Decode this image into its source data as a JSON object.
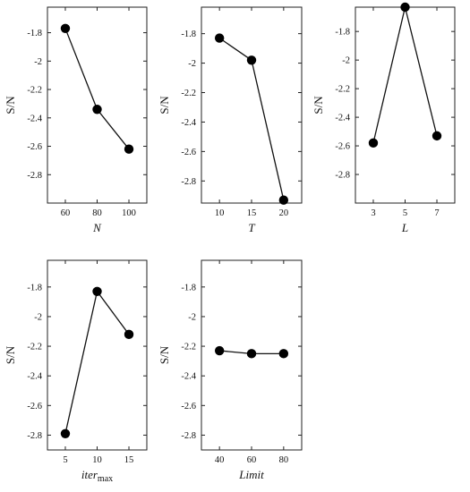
{
  "chart_data": [
    {
      "type": "line",
      "x": [
        "60",
        "80",
        "100"
      ],
      "values": [
        -1.77,
        -2.34,
        -2.62
      ],
      "ylim": [
        -3.0,
        -1.62
      ],
      "yticks": [
        -2.8,
        -2.6,
        -2.4,
        -2.2,
        -2.0,
        -1.8
      ],
      "ytick_labels": [
        "-2.8",
        "-2.6",
        "-2.4",
        "-2.2",
        "-2",
        "-1.8"
      ],
      "ylabel": "S/N",
      "xlabel": "N",
      "xlabel_sub": "",
      "grid": false
    },
    {
      "type": "line",
      "x": [
        "10",
        "15",
        "20"
      ],
      "values": [
        -1.83,
        -1.98,
        -2.93
      ],
      "ylim": [
        -2.95,
        -1.62
      ],
      "yticks": [
        -2.8,
        -2.6,
        -2.4,
        -2.2,
        -2.0,
        -1.8
      ],
      "ytick_labels": [
        "-2.8",
        "-2.6",
        "-2.4",
        "-2.2",
        "-2",
        "-1.8"
      ],
      "ylabel": "S/N",
      "xlabel": "T",
      "xlabel_sub": "",
      "grid": false
    },
    {
      "type": "line",
      "x": [
        "3",
        "5",
        "7"
      ],
      "values": [
        -2.58,
        -1.63,
        -2.53
      ],
      "ylim": [
        -3.0,
        -1.63
      ],
      "yticks": [
        -2.8,
        -2.6,
        -2.4,
        -2.2,
        -2.0,
        -1.8
      ],
      "ytick_labels": [
        "-2.8",
        "-2.6",
        "-2.4",
        "-2.2",
        "-2",
        "-1.8"
      ],
      "ylabel": "S/N",
      "xlabel": "L",
      "xlabel_sub": "",
      "grid": false
    },
    {
      "type": "line",
      "x": [
        "5",
        "10",
        "15"
      ],
      "values": [
        -2.79,
        -1.83,
        -2.12
      ],
      "ylim": [
        -2.9,
        -1.62
      ],
      "yticks": [
        -2.8,
        -2.6,
        -2.4,
        -2.2,
        -2.0,
        -1.8
      ],
      "ytick_labels": [
        "-2.8",
        "-2.6",
        "-2.4",
        "-2.2",
        "-2",
        "-1.8"
      ],
      "ylabel": "S/N",
      "xlabel": "iter",
      "xlabel_sub": "max",
      "grid": false
    },
    {
      "type": "line",
      "x": [
        "40",
        "60",
        "80"
      ],
      "values": [
        -2.23,
        -2.25,
        -2.25
      ],
      "ylim": [
        -2.9,
        -1.62
      ],
      "yticks": [
        -2.8,
        -2.6,
        -2.4,
        -2.2,
        -2.0,
        -1.8
      ],
      "ytick_labels": [
        "-2.8",
        "-2.6",
        "-2.4",
        "-2.2",
        "-2",
        "-1.8"
      ],
      "ylabel": "S/N",
      "xlabel": "Limit",
      "xlabel_sub": "",
      "grid": false
    }
  ]
}
